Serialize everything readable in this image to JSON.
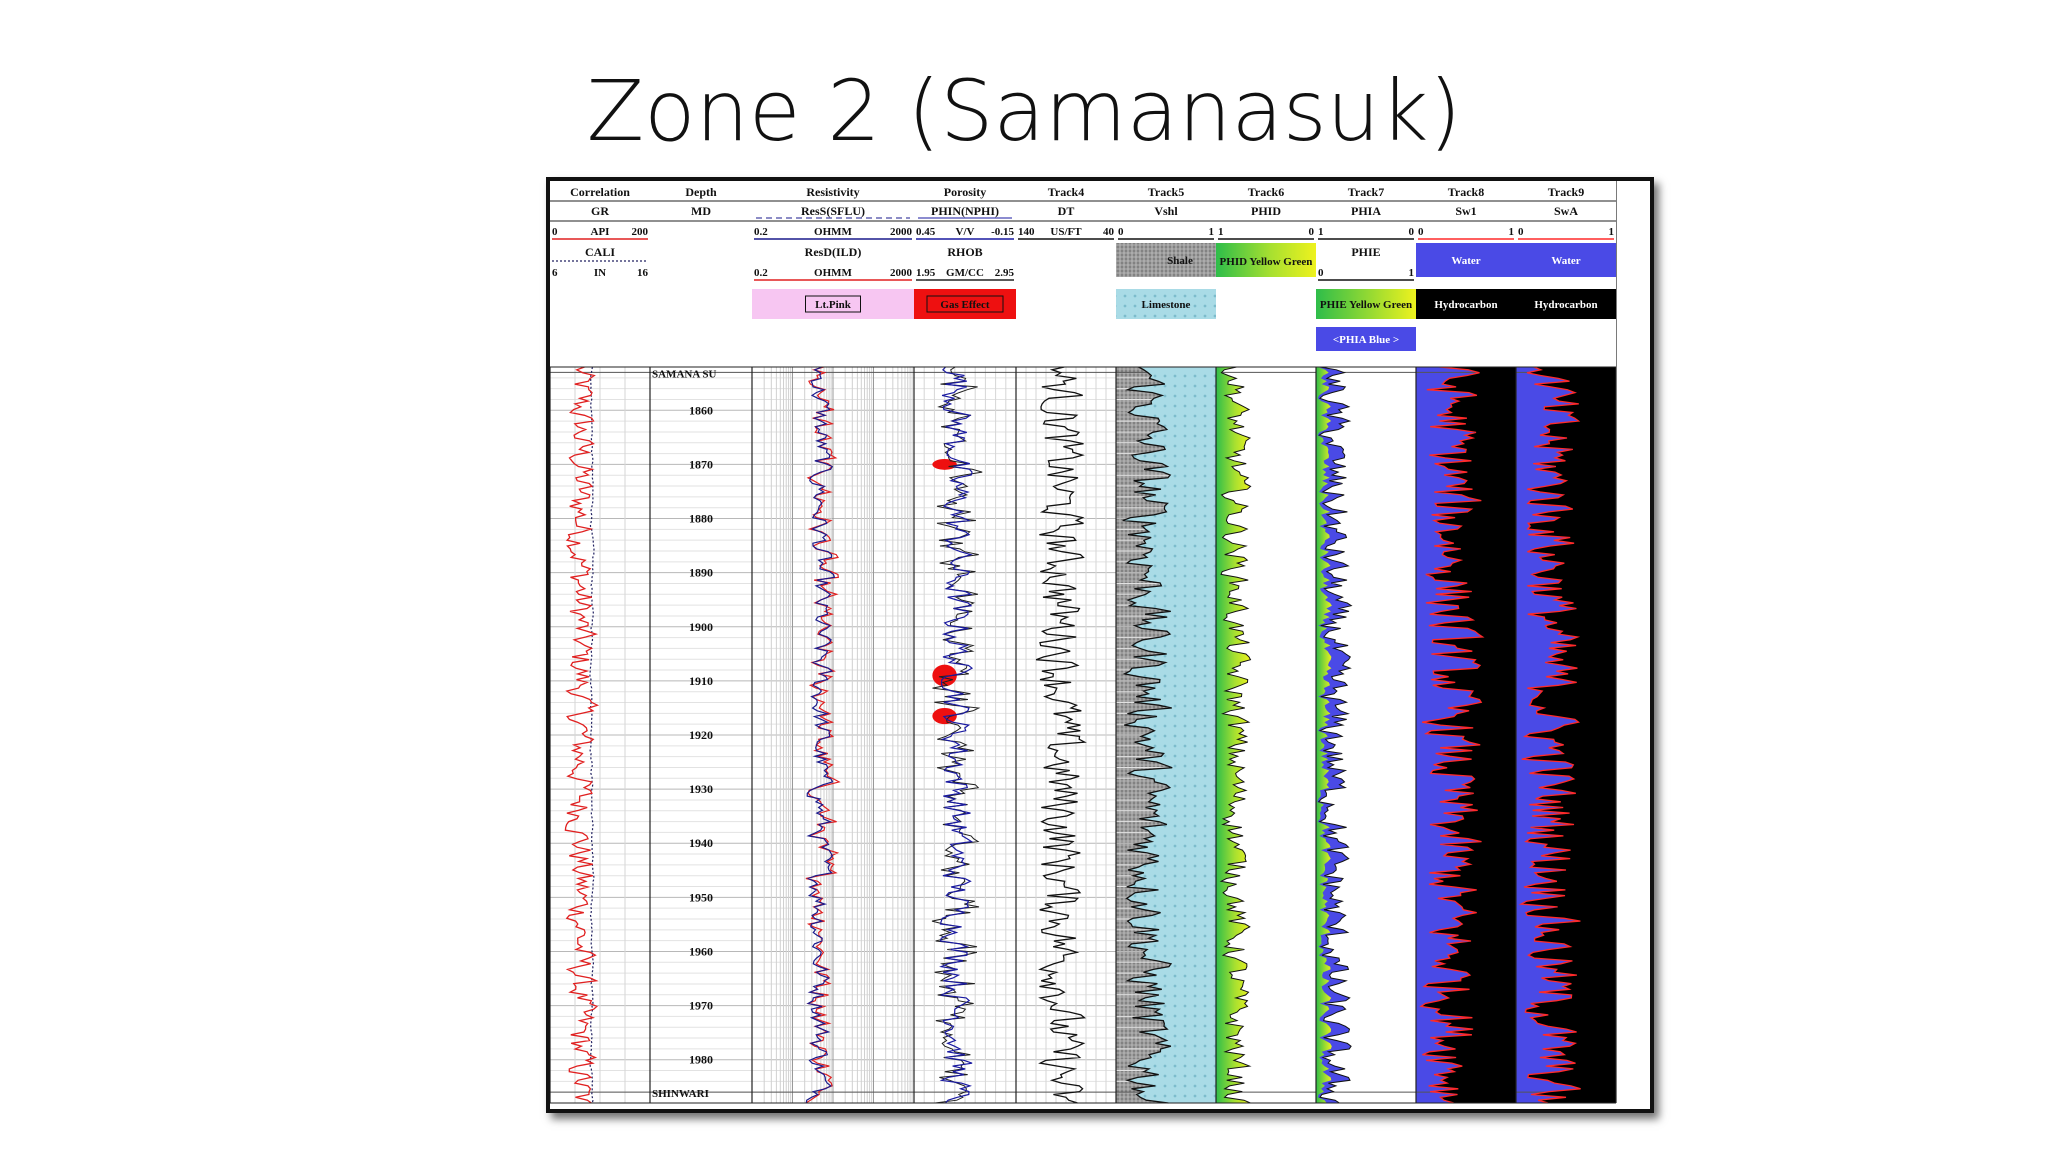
{
  "slide": {
    "title": "Zone 2 (Samanasuk)"
  },
  "chart_data": {
    "type": "line",
    "title": "Zone 2 (Samanasuk)",
    "depth_axis": {
      "label": "MD",
      "ticks": [
        1860,
        1870,
        1880,
        1890,
        1900,
        1910,
        1920,
        1930,
        1940,
        1950,
        1960,
        1970,
        1980
      ],
      "range": [
        1852,
        1988
      ]
    },
    "formation_tops": [
      {
        "name": "SAMANA SU",
        "depth": 1853
      },
      {
        "name": "SHINWARI",
        "depth": 1986
      }
    ],
    "tracks": [
      {
        "id": "correlation",
        "header": "Correlation",
        "curves": [
          {
            "name": "GR",
            "unit": "API",
            "min": "0",
            "max": "200",
            "color": "#e02020"
          },
          {
            "name": "CALI",
            "unit": "IN",
            "min": "6",
            "max": "16",
            "color": "#202060"
          }
        ]
      },
      {
        "id": "depth",
        "header": "Depth",
        "curves": [
          {
            "name": "MD"
          }
        ]
      },
      {
        "id": "resistivity",
        "header": "Resistivity",
        "curves": [
          {
            "name": "ResS(SFLU)",
            "unit": "OHMM",
            "min": "0.2",
            "max": "2000",
            "color": "#1a1a8c"
          },
          {
            "name": "ResD(ILD)",
            "unit": "OHMM",
            "min": "0.2",
            "max": "2000",
            "color": "#e02020"
          }
        ],
        "fill_label": "Lt.Pink"
      },
      {
        "id": "porosity",
        "header": "Porosity",
        "curves": [
          {
            "name": "PHIN(NPHI)",
            "unit": "V/V",
            "min": "0.45",
            "max": "-0.15",
            "color": "#1a1aa0"
          },
          {
            "name": "RHOB",
            "unit": "GM/CC",
            "min": "1.95",
            "max": "2.95",
            "color": "#202020"
          }
        ],
        "fill_label": "Gas Effect"
      },
      {
        "id": "track4",
        "header": "Track4",
        "curves": [
          {
            "name": "DT",
            "unit": "US/FT",
            "min": "140",
            "max": "40",
            "color": "#111111"
          }
        ]
      },
      {
        "id": "track5",
        "header": "Track5",
        "curves": [
          {
            "name": "Vshl",
            "min": "0",
            "max": "1"
          }
        ],
        "fill_labels": [
          "Shale",
          "Limestone"
        ]
      },
      {
        "id": "track6",
        "header": "Track6",
        "curves": [
          {
            "name": "PHID",
            "min": "1",
            "max": "0"
          }
        ],
        "fill_label": "PHID Yellow Green"
      },
      {
        "id": "track7",
        "header": "Track7",
        "curves": [
          {
            "name": "PHIA",
            "min": "1",
            "max": "0"
          },
          {
            "name": "PHIE",
            "min": "0",
            "max": "1"
          }
        ],
        "fill_labels": [
          "PHIE Yellow Green",
          "<PHIA Blue >"
        ]
      },
      {
        "id": "track8",
        "header": "Track8",
        "curves": [
          {
            "name": "Sw1",
            "min": "0",
            "max": "1"
          }
        ],
        "fill_labels": [
          "Water",
          "Hydrocarbon"
        ]
      },
      {
        "id": "track9",
        "header": "Track9",
        "curves": [
          {
            "name": "SwA",
            "min": "0",
            "max": "1"
          }
        ],
        "fill_labels": [
          "Water",
          "Hydrocarbon"
        ]
      }
    ],
    "colors": {
      "gr": "#e02020",
      "res_shallow": "#1a1a8c",
      "res_deep": "#e02020",
      "nphi": "#1a1aa0",
      "gas_effect": "#ee1010",
      "lt_pink": "#f7c6f2",
      "limestone": "#a9dbe6",
      "shale": "#8a8a8a",
      "phid_yellow": "#eef21e",
      "phid_green": "#2ebd4a",
      "phia_blue": "#4a4ae6",
      "water": "#4a4ae6",
      "hydrocarbon": "#000000"
    }
  }
}
